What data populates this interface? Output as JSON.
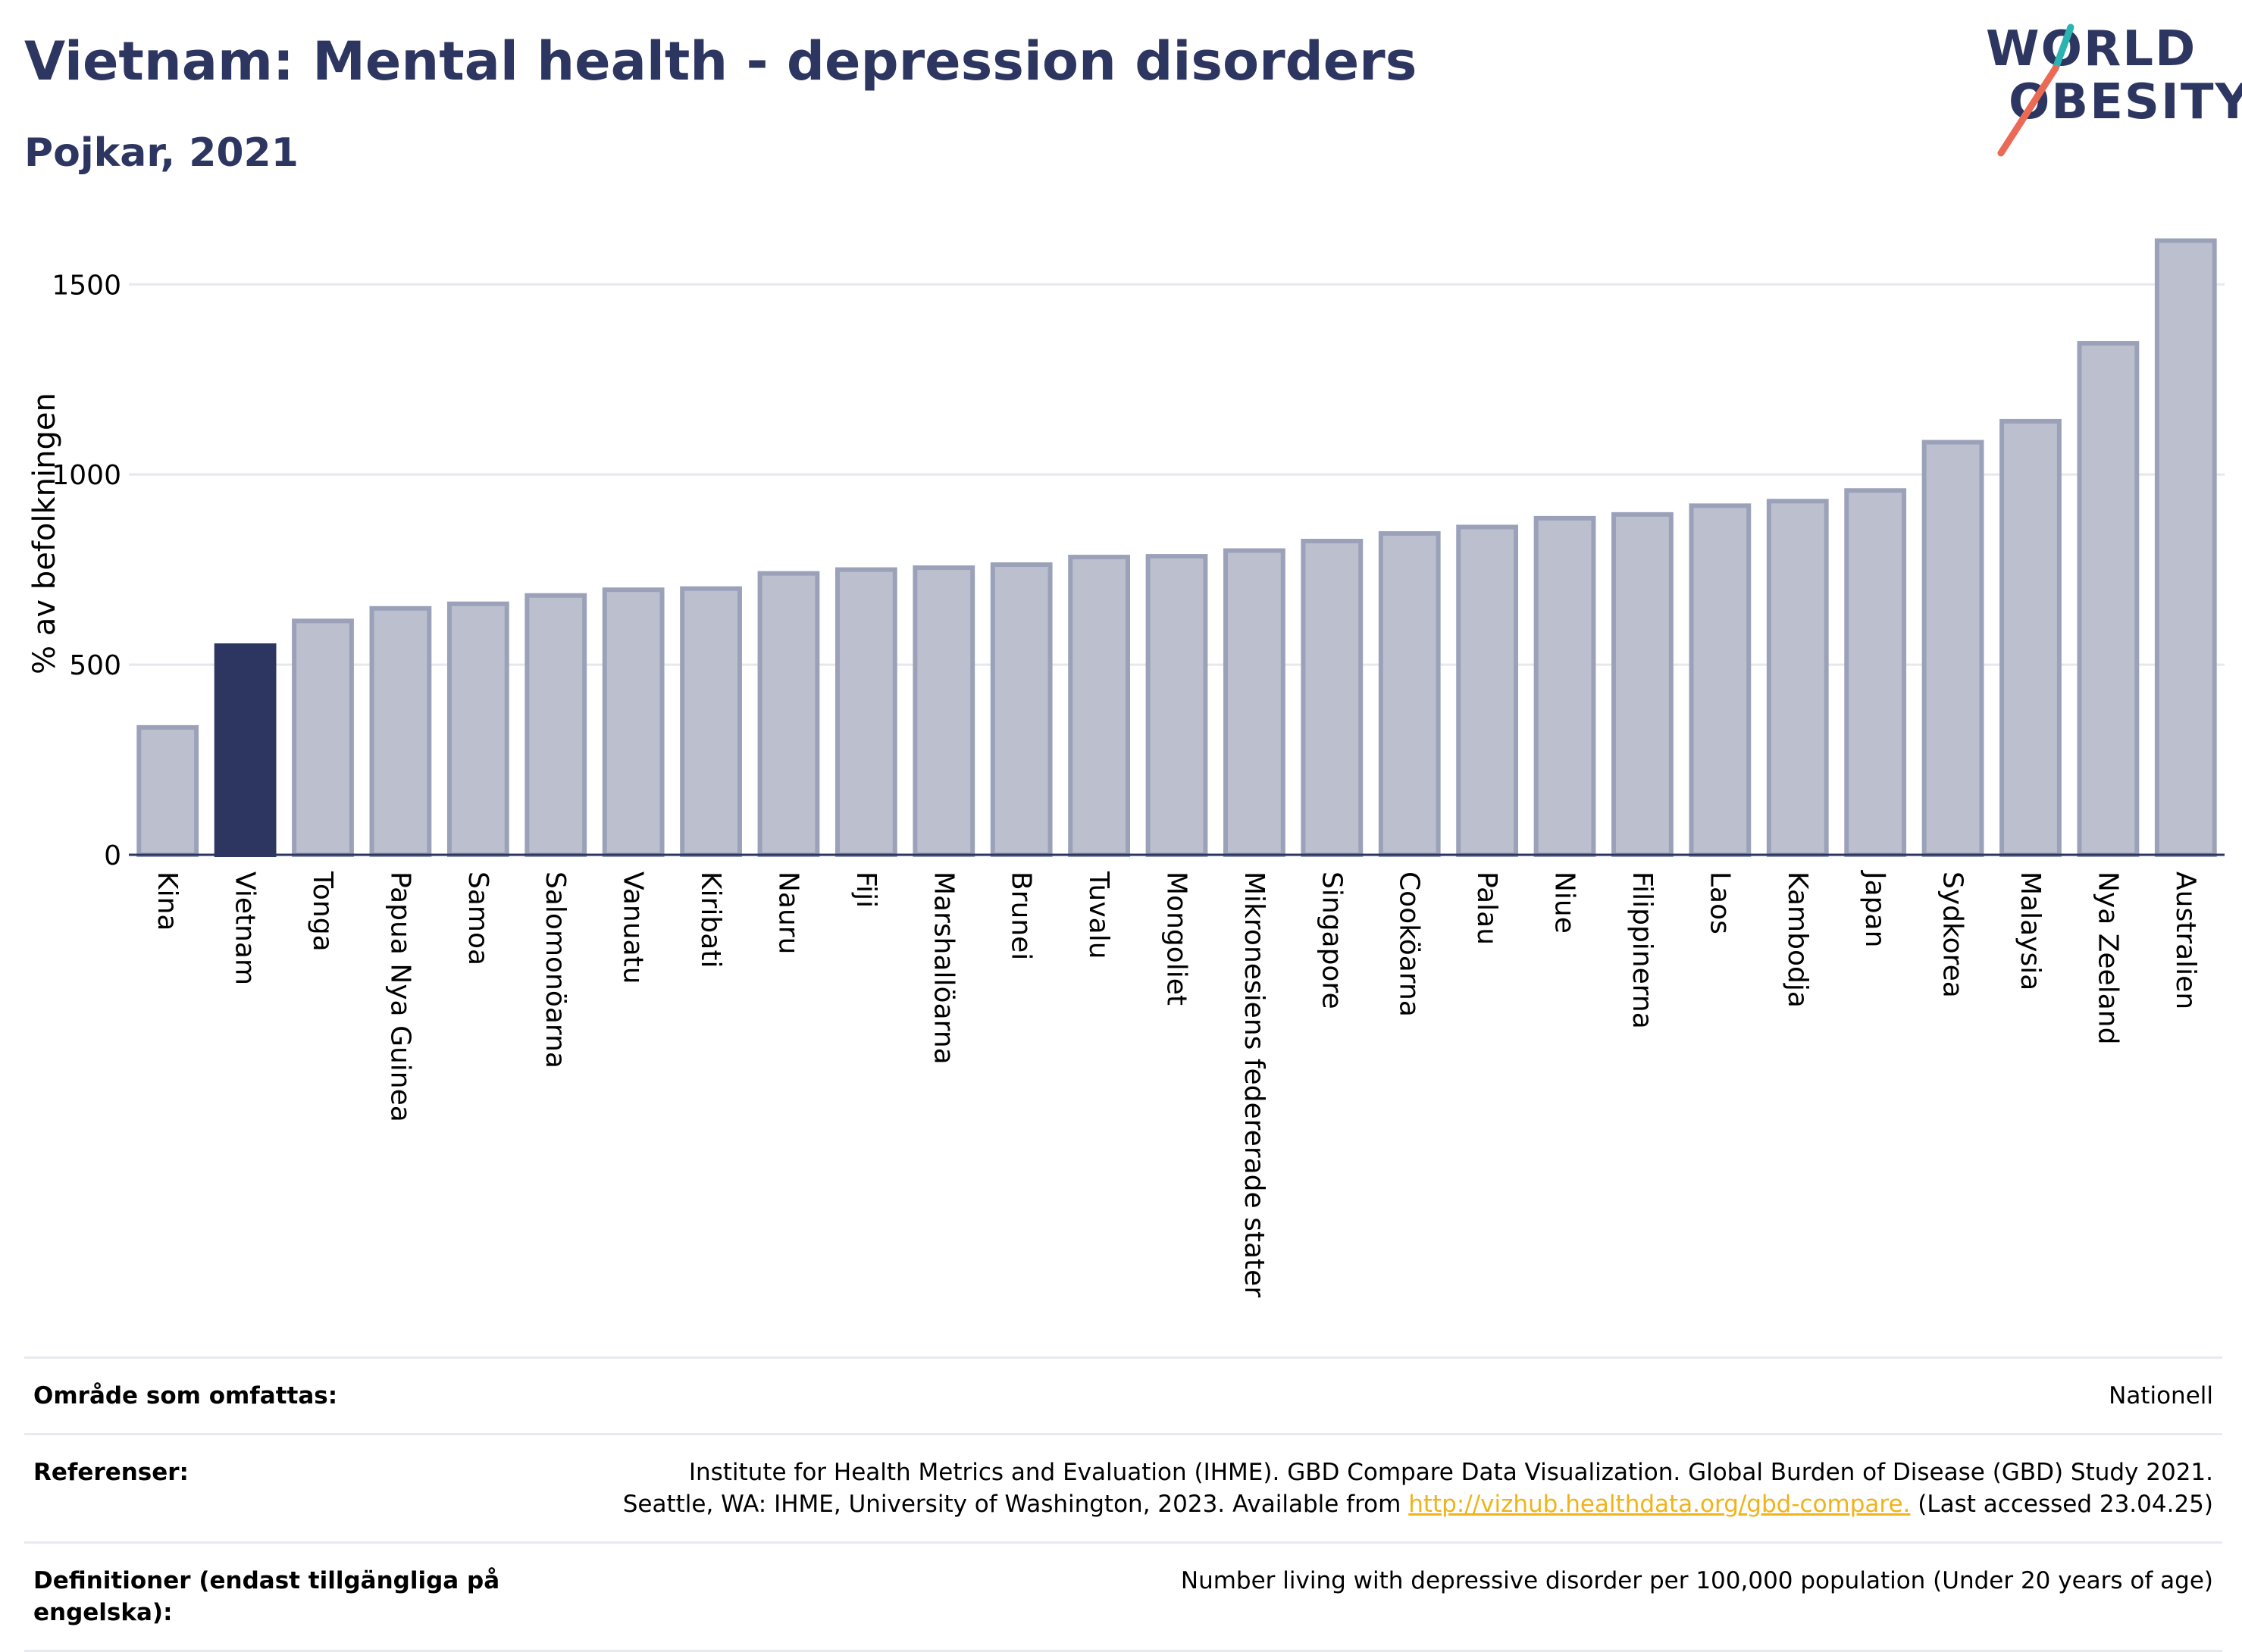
{
  "header": {
    "title": "Vietnam: Mental health - depression disorders",
    "subtitle": "Pojkar, 2021",
    "logo_text_1": "WORLD",
    "logo_text_2": "OBESITY"
  },
  "colors": {
    "bar": "#bcc0ce",
    "bar_edge": "#9ba1b9",
    "highlight": "#2d3660",
    "grid": "#e6e8ee",
    "axis": "#2d3660",
    "logo_teal": "#2ab3b1",
    "logo_coral": "#ea6a55"
  },
  "chart_data": {
    "type": "bar",
    "ylabel": "% av befolkningen",
    "ylim": [
      0,
      1650
    ],
    "yticks": [
      0,
      500,
      1000,
      1500
    ],
    "grid": true,
    "highlight": "Vietnam",
    "categories": [
      "Kina",
      "Vietnam",
      "Tonga",
      "Papua Nya Guinea",
      "Samoa",
      "Salomonöarna",
      "Vanuatu",
      "Kiribati",
      "Nauru",
      "Fiji",
      "Marshallöarna",
      "Brunei",
      "Tuvalu",
      "Mongoliet",
      "Mikronesiens federerade stater",
      "Singapore",
      "Cooköarna",
      "Palau",
      "Niue",
      "Filippinerna",
      "Laos",
      "Kambodja",
      "Japan",
      "Sydkorea",
      "Malaysia",
      "Nya Zeeland",
      "Australien"
    ],
    "values": [
      335,
      550,
      615,
      648,
      660,
      682,
      697,
      700,
      740,
      750,
      755,
      763,
      783,
      785,
      800,
      825,
      845,
      862,
      885,
      895,
      918,
      930,
      958,
      1085,
      1140,
      1345,
      1615
    ]
  },
  "info": {
    "rows": [
      {
        "label": "Område som omfattas:",
        "value_lines": [
          "Nationell"
        ]
      },
      {
        "label": "Referenser:",
        "value_lines": [
          "Institute for Health Metrics and Evaluation (IHME). GBD Compare Data Visualization. Global Burden of Disease (GBD) Study 2021.",
          "Seattle, WA: IHME, University of Washington, 2023. Available from "
        ],
        "link": "http://vizhub.healthdata.org/gbd-compare.",
        "after_link": " (Last accessed 23.04.25)"
      },
      {
        "label": "Definitioner (endast tillgängliga på engelska):",
        "value_lines": [
          "Number living with depressive disorder per 100,000 population (Under 20 years of age)"
        ]
      }
    ]
  }
}
